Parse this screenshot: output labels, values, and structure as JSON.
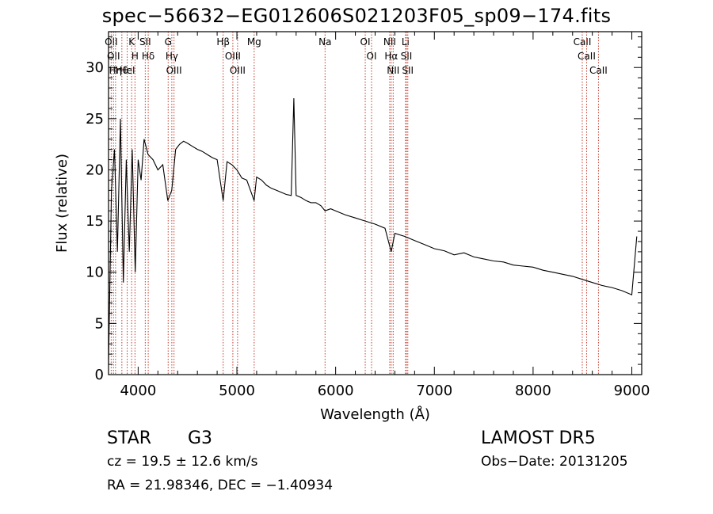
{
  "chart_data": {
    "type": "line",
    "title": "spec−56632−EG012606S021203F05_sp09−174.fits",
    "xlabel": "Wavelength (Å)",
    "ylabel": "Flux (relative)",
    "xlim": [
      3700,
      9100
    ],
    "ylim": [
      0,
      33.5
    ],
    "x_ticks": [
      4000,
      5000,
      6000,
      7000,
      8000,
      9000
    ],
    "y_ticks": [
      0,
      5,
      10,
      15,
      20,
      25,
      30
    ],
    "grid": false,
    "series": [
      {
        "x": [
          3700,
          3730,
          3760,
          3790,
          3820,
          3850,
          3880,
          3910,
          3940,
          3970,
          4000,
          4030,
          4060,
          4100,
          4150,
          4200,
          4250,
          4300,
          4340,
          4380,
          4420,
          4460,
          4500,
          4550,
          4600,
          4650,
          4700,
          4750,
          4800,
          4861,
          4900,
          4950,
          5000,
          5050,
          5100,
          5175,
          5200,
          5250,
          5300,
          5350,
          5400,
          5450,
          5500,
          5550,
          5577,
          5600,
          5650,
          5700,
          5750,
          5800,
          5850,
          5893,
          5950,
          6000,
          6100,
          6200,
          6300,
          6400,
          6500,
          6563,
          6600,
          6700,
          6800,
          6900,
          7000,
          7100,
          7200,
          7300,
          7400,
          7500,
          7600,
          7700,
          7800,
          7900,
          8000,
          8100,
          8200,
          8300,
          8400,
          8500,
          8600,
          8700,
          8800,
          8900,
          9000,
          9050
        ],
        "y": [
          1.0,
          18.0,
          22.0,
          12.0,
          25.0,
          9.0,
          21.0,
          12.0,
          22.0,
          10.0,
          21.0,
          19.0,
          23.0,
          21.5,
          21.0,
          20.0,
          20.5,
          17.0,
          18.0,
          22.0,
          22.5,
          22.8,
          22.6,
          22.3,
          22.0,
          21.8,
          21.5,
          21.2,
          21.0,
          17.0,
          20.8,
          20.5,
          20.0,
          19.2,
          19.0,
          17.0,
          19.3,
          19.0,
          18.5,
          18.2,
          18.0,
          17.8,
          17.6,
          17.5,
          27.0,
          17.5,
          17.3,
          17.0,
          16.8,
          16.8,
          16.5,
          16.0,
          16.2,
          16.0,
          15.6,
          15.3,
          15.0,
          14.7,
          14.3,
          12.0,
          13.8,
          13.5,
          13.1,
          12.7,
          12.3,
          12.1,
          11.7,
          11.9,
          11.5,
          11.3,
          11.1,
          11.0,
          10.7,
          10.6,
          10.5,
          10.2,
          10.0,
          9.8,
          9.6,
          9.3,
          9.0,
          8.7,
          8.5,
          8.2,
          7.8,
          13.5
        ]
      }
    ],
    "lines": [
      {
        "x": 3727,
        "label": "OII"
      },
      {
        "x": 3750,
        "label": "OII"
      },
      {
        "x": 3771,
        "label": "Hη"
      },
      {
        "x": 3835,
        "label": "Hθ"
      },
      {
        "x": 3889,
        "label": "HeI"
      },
      {
        "x": 3934,
        "label": "K"
      },
      {
        "x": 3968,
        "label": "H"
      },
      {
        "x": 4072,
        "label": "SII"
      },
      {
        "x": 4102,
        "label": "Hδ"
      },
      {
        "x": 4304,
        "label": "G"
      },
      {
        "x": 4341,
        "label": "Hγ"
      },
      {
        "x": 4363,
        "label": "OIII"
      },
      {
        "x": 4861,
        "label": "Hβ"
      },
      {
        "x": 4959,
        "label": "OIII"
      },
      {
        "x": 5007,
        "label": "OIII"
      },
      {
        "x": 5175,
        "label": "Mg"
      },
      {
        "x": 5893,
        "label": "Na"
      },
      {
        "x": 6300,
        "label": "OI"
      },
      {
        "x": 6364,
        "label": "OI"
      },
      {
        "x": 6548,
        "label": "NII"
      },
      {
        "x": 6563,
        "label": "Hα"
      },
      {
        "x": 6583,
        "label": "NII"
      },
      {
        "x": 6708,
        "label": "Li"
      },
      {
        "x": 6717,
        "label": "SII"
      },
      {
        "x": 6731,
        "label": "SII"
      },
      {
        "x": 8498,
        "label": "CaII"
      },
      {
        "x": 8542,
        "label": "CaII"
      },
      {
        "x": 8662,
        "label": "CaII"
      }
    ]
  },
  "info": {
    "class": "STAR",
    "subclass": "G3",
    "survey": "LAMOST DR5",
    "cz": "cz = 19.5 ± 12.6 km/s",
    "obs_date": "Obs−Date: 20131205",
    "coords": "RA =  21.98346, DEC =  −1.40934"
  }
}
